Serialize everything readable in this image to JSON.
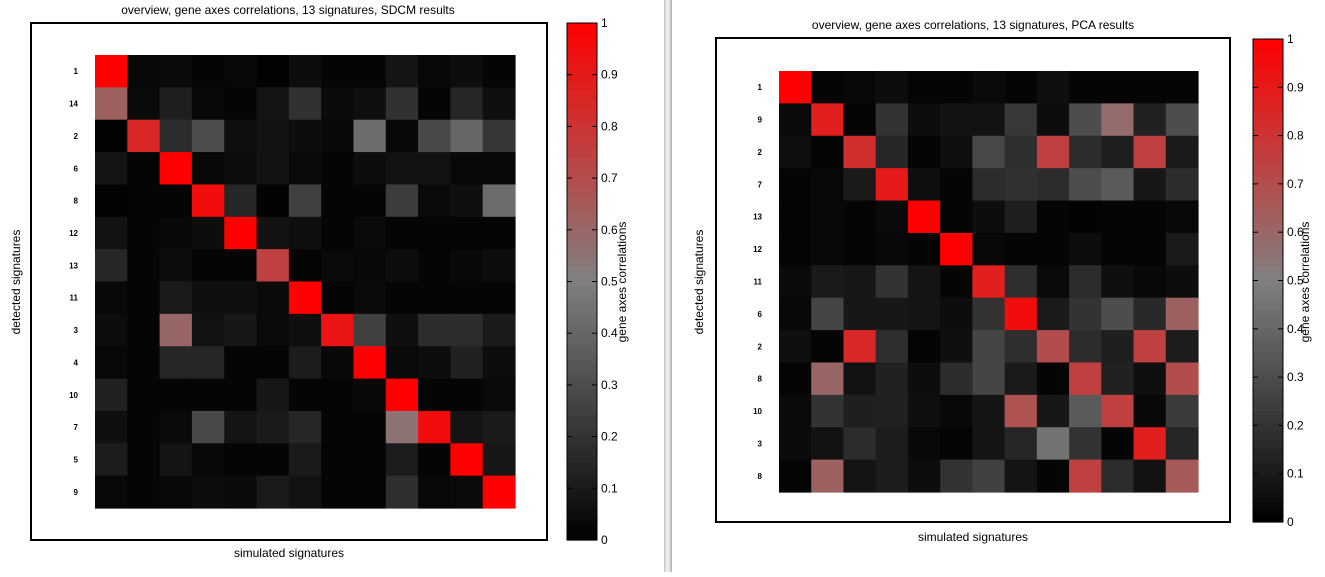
{
  "chart_data": [
    {
      "type": "heatmap",
      "title": "overview, gene axes correlations, 13 signatures, SDCM results",
      "xlabel": "simulated signatures",
      "ylabel": "detected signatures",
      "row_labels": [
        "1",
        "14",
        "2",
        "6",
        "8",
        "12",
        "13",
        "11",
        "3",
        "4",
        "10",
        "7",
        "5",
        "9"
      ],
      "colorbar": {
        "label": "gene axes correlations",
        "range": [
          0,
          1
        ],
        "ticks": [
          "0",
          "0.1",
          "0.2",
          "0.3",
          "0.4",
          "0.5",
          "0.6",
          "0.7",
          "0.8",
          "0.9",
          "1"
        ]
      },
      "values": [
        [
          1.0,
          0.03,
          0.04,
          0.02,
          0.03,
          0.01,
          0.05,
          0.02,
          0.02,
          0.08,
          0.03,
          0.05,
          0.02
        ],
        [
          0.62,
          0.04,
          0.12,
          0.03,
          0.02,
          0.08,
          0.19,
          0.04,
          0.06,
          0.19,
          0.02,
          0.15,
          0.06
        ],
        [
          0.01,
          0.85,
          0.17,
          0.3,
          0.06,
          0.07,
          0.05,
          0.03,
          0.42,
          0.03,
          0.28,
          0.4,
          0.21
        ],
        [
          0.08,
          0.02,
          1.0,
          0.03,
          0.05,
          0.07,
          0.04,
          0.02,
          0.05,
          0.07,
          0.07,
          0.03,
          0.03
        ],
        [
          0.01,
          0.02,
          0.02,
          0.95,
          0.15,
          0.01,
          0.25,
          0.02,
          0.02,
          0.24,
          0.04,
          0.06,
          0.42
        ],
        [
          0.07,
          0.02,
          0.03,
          0.05,
          1.0,
          0.07,
          0.06,
          0.02,
          0.04,
          0.02,
          0.02,
          0.02,
          0.02
        ],
        [
          0.15,
          0.02,
          0.05,
          0.02,
          0.02,
          0.75,
          0.02,
          0.04,
          0.03,
          0.05,
          0.02,
          0.03,
          0.05
        ],
        [
          0.03,
          0.02,
          0.1,
          0.06,
          0.06,
          0.04,
          1.0,
          0.02,
          0.04,
          0.02,
          0.02,
          0.02,
          0.02
        ],
        [
          0.05,
          0.02,
          0.6,
          0.07,
          0.09,
          0.04,
          0.06,
          0.92,
          0.25,
          0.06,
          0.17,
          0.17,
          0.1
        ],
        [
          0.03,
          0.02,
          0.15,
          0.15,
          0.02,
          0.02,
          0.11,
          0.03,
          1.0,
          0.04,
          0.05,
          0.13,
          0.05
        ],
        [
          0.13,
          0.02,
          0.02,
          0.02,
          0.02,
          0.09,
          0.02,
          0.02,
          0.03,
          1.0,
          0.02,
          0.02,
          0.04
        ],
        [
          0.06,
          0.02,
          0.04,
          0.28,
          0.08,
          0.1,
          0.15,
          0.02,
          0.02,
          0.55,
          0.95,
          0.08,
          0.1
        ],
        [
          0.11,
          0.02,
          0.08,
          0.03,
          0.02,
          0.02,
          0.1,
          0.02,
          0.02,
          0.11,
          0.02,
          1.0,
          0.09
        ],
        [
          0.03,
          0.02,
          0.03,
          0.05,
          0.04,
          0.1,
          0.07,
          0.02,
          0.02,
          0.18,
          0.03,
          0.04,
          1.0
        ]
      ]
    },
    {
      "type": "heatmap",
      "title": "overview, gene axes correlations, 13 signatures, PCA results",
      "xlabel": "simulated signatures",
      "ylabel": "detected signatures",
      "row_labels": [
        "1",
        "9",
        "2",
        "7",
        "13",
        "12",
        "11",
        "6",
        "2",
        "8",
        "10",
        "3",
        "8"
      ],
      "colorbar": {
        "label": "gene axes correlations",
        "range": [
          0,
          1
        ],
        "ticks": [
          "0",
          "0.1",
          "0.2",
          "0.3",
          "0.4",
          "0.5",
          "0.6",
          "0.7",
          "0.8",
          "0.9",
          "1"
        ]
      },
      "values": [
        [
          1.0,
          0.02,
          0.03,
          0.05,
          0.02,
          0.02,
          0.04,
          0.02,
          0.06,
          0.02,
          0.02,
          0.02,
          0.02
        ],
        [
          0.04,
          0.88,
          0.02,
          0.2,
          0.05,
          0.07,
          0.07,
          0.22,
          0.05,
          0.3,
          0.58,
          0.13,
          0.3
        ],
        [
          0.06,
          0.02,
          0.82,
          0.15,
          0.02,
          0.06,
          0.28,
          0.18,
          0.75,
          0.17,
          0.12,
          0.75,
          0.1
        ],
        [
          0.02,
          0.03,
          0.1,
          0.9,
          0.06,
          0.02,
          0.17,
          0.19,
          0.17,
          0.3,
          0.35,
          0.09,
          0.17
        ],
        [
          0.02,
          0.03,
          0.02,
          0.04,
          1.0,
          0.02,
          0.05,
          0.12,
          0.02,
          0.01,
          0.02,
          0.02,
          0.03
        ],
        [
          0.02,
          0.03,
          0.02,
          0.03,
          0.02,
          1.0,
          0.03,
          0.02,
          0.02,
          0.05,
          0.02,
          0.02,
          0.1
        ],
        [
          0.04,
          0.1,
          0.09,
          0.2,
          0.08,
          0.02,
          0.88,
          0.18,
          0.04,
          0.17,
          0.06,
          0.03,
          0.05
        ],
        [
          0.03,
          0.27,
          0.09,
          0.09,
          0.08,
          0.05,
          0.2,
          0.95,
          0.1,
          0.2,
          0.3,
          0.16,
          0.62
        ],
        [
          0.06,
          0.02,
          0.85,
          0.18,
          0.02,
          0.06,
          0.27,
          0.18,
          0.7,
          0.17,
          0.12,
          0.75,
          0.11
        ],
        [
          0.02,
          0.6,
          0.07,
          0.13,
          0.05,
          0.17,
          0.27,
          0.1,
          0.02,
          0.75,
          0.13,
          0.06,
          0.7
        ],
        [
          0.04,
          0.2,
          0.12,
          0.13,
          0.06,
          0.03,
          0.08,
          0.68,
          0.09,
          0.35,
          0.75,
          0.03,
          0.23
        ],
        [
          0.04,
          0.07,
          0.17,
          0.11,
          0.03,
          0.02,
          0.08,
          0.15,
          0.45,
          0.2,
          0.02,
          0.88,
          0.15
        ],
        [
          0.02,
          0.62,
          0.08,
          0.11,
          0.05,
          0.2,
          0.25,
          0.08,
          0.02,
          0.75,
          0.17,
          0.07,
          0.65
        ]
      ]
    }
  ]
}
